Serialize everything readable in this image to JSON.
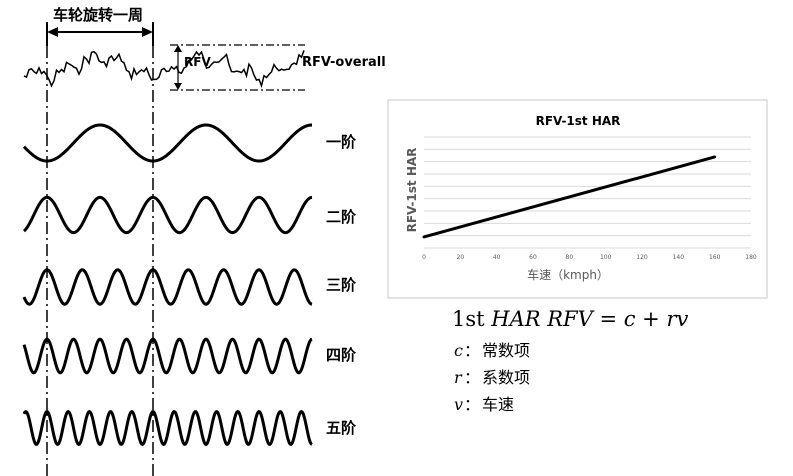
{
  "left_panel": {
    "rotation_label": "车轮旋转一周",
    "rfv_label": "RFV",
    "overall_label": "RFV-overall",
    "harmonics": [
      {
        "label": "一阶",
        "order": 1
      },
      {
        "label": "二阶",
        "order": 2
      },
      {
        "label": "三阶",
        "order": 3
      },
      {
        "label": "四阶",
        "order": 4
      },
      {
        "label": "五阶",
        "order": 5
      }
    ]
  },
  "chart_data": {
    "type": "line",
    "title": "RFV-1st HAR",
    "xlabel": "车速（kmph）",
    "ylabel": "RFV-1st HAR",
    "xlim": [
      0,
      180
    ],
    "xticks": [
      "0",
      "20",
      "40",
      "60",
      "80",
      "100",
      "120",
      "140",
      "160",
      "180"
    ],
    "y_ticks_shown": false,
    "grid": true,
    "series": [
      {
        "x": [
          0,
          160
        ],
        "y": [
          0.1,
          0.82
        ]
      }
    ]
  },
  "equation": {
    "prefix": "1st ",
    "lhs": "HAR RFV",
    "eq": " = ",
    "rhs": "c + rv"
  },
  "legend": [
    {
      "symbol": "c",
      "sep": "：",
      "desc": "常数项"
    },
    {
      "symbol": "r",
      "sep": "：",
      "desc": "系数项"
    },
    {
      "symbol": "v",
      "sep": "：",
      "desc": "车速"
    }
  ]
}
